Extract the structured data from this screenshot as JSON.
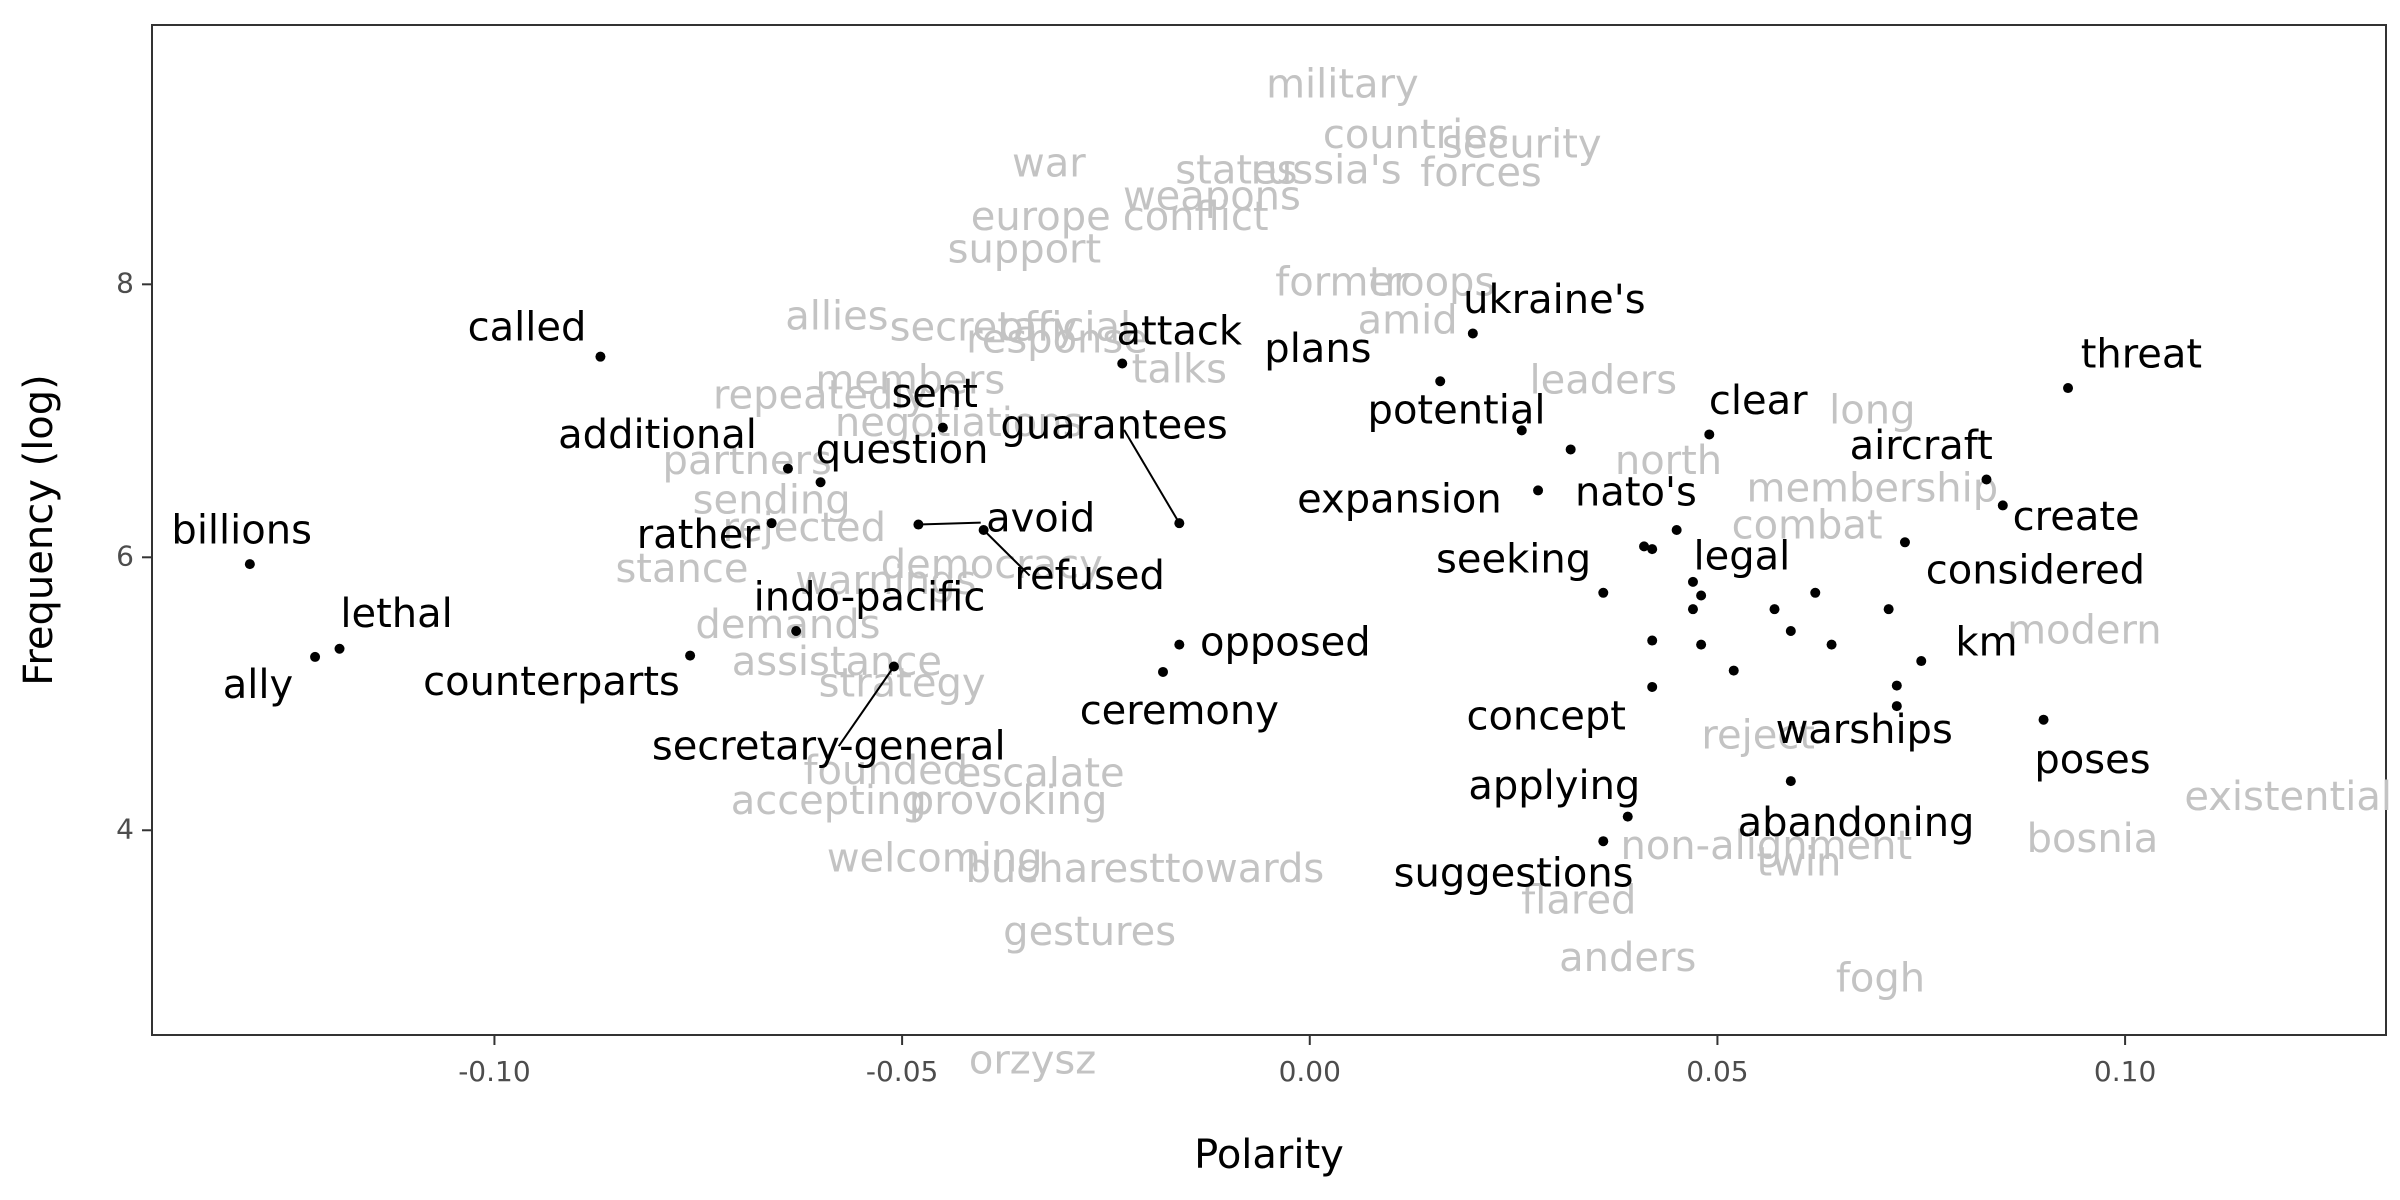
{
  "chart_data": {
    "type": "scatter",
    "xlabel": "Polarity",
    "ylabel": "Frequency (log)",
    "xlim": [
      -0.142,
      0.132
    ],
    "ylim": [
      2.5,
      9.9
    ],
    "x_ticks": [
      -0.1,
      -0.05,
      0.0,
      0.05,
      0.1
    ],
    "x_tick_labels": [
      "-0.10",
      "-0.05",
      "0.00",
      "0.05",
      "0.10"
    ],
    "y_ticks": [
      4,
      6,
      8
    ],
    "y_tick_labels": [
      "4",
      "6",
      "8"
    ],
    "grid": false,
    "colors": {
      "highlight": "#000000",
      "background_words": "#c3c3c3",
      "axis_text": "#4d4d4d"
    },
    "highlighted": [
      {
        "word": "called",
        "x": -0.087,
        "y": 7.47,
        "lx": -0.096,
        "ly": 7.67
      },
      {
        "word": "billions",
        "x": -0.13,
        "y": 5.95,
        "lx": -0.131,
        "ly": 6.18
      },
      {
        "word": "lethal",
        "x": -0.119,
        "y": 5.33,
        "lx": -0.112,
        "ly": 5.57
      },
      {
        "word": "ally",
        "x": -0.122,
        "y": 5.27,
        "lx": -0.129,
        "ly": 5.05
      },
      {
        "word": "additional",
        "x": -0.064,
        "y": 6.65,
        "lx": -0.08,
        "ly": 6.88
      },
      {
        "word": "sent",
        "x": -0.045,
        "y": 6.95,
        "lx": -0.046,
        "ly": 7.18
      },
      {
        "word": "question",
        "x": -0.06,
        "y": 6.55,
        "lx": -0.05,
        "ly": 6.77
      },
      {
        "word": "rather",
        "x": -0.066,
        "y": 6.25,
        "lx": -0.075,
        "ly": 6.15
      },
      {
        "word": "guarantees",
        "x": -0.016,
        "y": 6.25,
        "lx": -0.024,
        "ly": 6.95,
        "leader": true
      },
      {
        "word": "avoid",
        "x": -0.048,
        "y": 6.24,
        "lx": -0.033,
        "ly": 6.27,
        "leader": true
      },
      {
        "word": "refused",
        "x": -0.04,
        "y": 6.2,
        "lx": -0.027,
        "ly": 5.85,
        "leader": true
      },
      {
        "word": "attack",
        "x": -0.023,
        "y": 7.42,
        "lx": -0.016,
        "ly": 7.64
      },
      {
        "word": "indo-pacific",
        "x": -0.063,
        "y": 5.46,
        "lx": -0.054,
        "ly": 5.69
      },
      {
        "word": "counterparts",
        "x": -0.076,
        "y": 5.28,
        "lx": -0.093,
        "ly": 5.07
      },
      {
        "word": "secretary-general",
        "x": -0.051,
        "y": 5.2,
        "lx": -0.059,
        "ly": 4.6,
        "leader": true
      },
      {
        "word": "opposed",
        "x": -0.016,
        "y": 5.36,
        "lx": -0.003,
        "ly": 5.36
      },
      {
        "word": "ceremony",
        "x": -0.018,
        "y": 5.16,
        "lx": -0.016,
        "ly": 4.86
      },
      {
        "word": "plans",
        "x": 0.016,
        "y": 7.29,
        "lx": 0.001,
        "ly": 7.51
      },
      {
        "word": "ukraine's",
        "x": 0.02,
        "y": 7.64,
        "lx": 0.03,
        "ly": 7.87
      },
      {
        "word": "potential",
        "x": 0.026,
        "y": 6.93,
        "lx": 0.018,
        "ly": 7.06
      },
      {
        "word": "clear",
        "x": 0.049,
        "y": 6.9,
        "lx": 0.055,
        "ly": 7.13
      },
      {
        "word": "expansion",
        "x": 0.028,
        "y": 6.49,
        "lx": 0.011,
        "ly": 6.41
      },
      {
        "word": "nato's",
        "x": 0.032,
        "y": 6.79,
        "lx": 0.04,
        "ly": 6.46
      },
      {
        "word": "seeking",
        "x": 0.036,
        "y": 5.74,
        "lx": 0.025,
        "ly": 5.97
      },
      {
        "word": "legal",
        "x": 0.045,
        "y": 6.2,
        "lx": 0.053,
        "ly": 5.99
      },
      {
        "word": "threat",
        "x": 0.093,
        "y": 7.24,
        "lx": 0.102,
        "ly": 7.47
      },
      {
        "word": "aircraft",
        "x": 0.083,
        "y": 6.57,
        "lx": 0.075,
        "ly": 6.8
      },
      {
        "word": "create",
        "x": 0.085,
        "y": 6.38,
        "lx": 0.094,
        "ly": 6.28
      },
      {
        "word": "considered",
        "x": 0.073,
        "y": 6.11,
        "lx": 0.089,
        "ly": 5.89
      },
      {
        "word": "km",
        "x": 0.075,
        "y": 5.24,
        "lx": 0.083,
        "ly": 5.36
      },
      {
        "word": "warships",
        "x": 0.072,
        "y": 4.91,
        "lx": 0.068,
        "ly": 4.72
      },
      {
        "word": "poses",
        "x": 0.09,
        "y": 4.81,
        "lx": 0.096,
        "ly": 4.5
      },
      {
        "word": "concept",
        "x": 0.042,
        "y": 5.05,
        "lx": 0.029,
        "ly": 4.82
      },
      {
        "word": "applying",
        "x": 0.039,
        "y": 4.1,
        "lx": 0.03,
        "ly": 4.31
      },
      {
        "word": "abandoning",
        "x": 0.059,
        "y": 4.36,
        "lx": 0.067,
        "ly": 4.04
      },
      {
        "word": "suggestions",
        "x": 0.036,
        "y": 3.92,
        "lx": 0.025,
        "ly": 3.67
      }
    ],
    "extra_points": [
      [
        0.041,
        6.08
      ],
      [
        0.042,
        6.06
      ],
      [
        0.047,
        5.82
      ],
      [
        0.048,
        5.72
      ],
      [
        0.047,
        5.62
      ],
      [
        0.042,
        5.39
      ],
      [
        0.048,
        5.36
      ],
      [
        0.052,
        5.17
      ],
      [
        0.057,
        5.62
      ],
      [
        0.059,
        5.46
      ],
      [
        0.062,
        5.74
      ],
      [
        0.064,
        5.36
      ],
      [
        0.071,
        5.62
      ],
      [
        0.072,
        5.06
      ]
    ],
    "background_words": [
      {
        "word": "military",
        "x": 0.004,
        "y": 9.45
      },
      {
        "word": "countries",
        "x": 0.013,
        "y": 9.08
      },
      {
        "word": "security",
        "x": 0.026,
        "y": 9.01
      },
      {
        "word": "war",
        "x": -0.032,
        "y": 8.87
      },
      {
        "word": "states",
        "x": -0.009,
        "y": 8.82
      },
      {
        "word": "russia's",
        "x": 0.002,
        "y": 8.82
      },
      {
        "word": "forces",
        "x": 0.021,
        "y": 8.8
      },
      {
        "word": "weapons",
        "x": -0.012,
        "y": 8.63
      },
      {
        "word": "europe",
        "x": -0.033,
        "y": 8.48
      },
      {
        "word": "conflict",
        "x": -0.014,
        "y": 8.48
      },
      {
        "word": "support",
        "x": -0.035,
        "y": 8.24
      },
      {
        "word": "former",
        "x": 0.004,
        "y": 8.0
      },
      {
        "word": "troops",
        "x": 0.015,
        "y": 8.0
      },
      {
        "word": "allies",
        "x": -0.058,
        "y": 7.75
      },
      {
        "word": "secretary",
        "x": -0.04,
        "y": 7.67
      },
      {
        "word": "official",
        "x": -0.03,
        "y": 7.67
      },
      {
        "word": "amid",
        "x": 0.012,
        "y": 7.72
      },
      {
        "word": "response",
        "x": -0.031,
        "y": 7.58
      },
      {
        "word": "members",
        "x": -0.049,
        "y": 7.28
      },
      {
        "word": "repeatedly",
        "x": -0.06,
        "y": 7.17
      },
      {
        "word": "talks",
        "x": -0.016,
        "y": 7.36
      },
      {
        "word": "leaders",
        "x": 0.036,
        "y": 7.28
      },
      {
        "word": "long",
        "x": 0.069,
        "y": 7.06
      },
      {
        "word": "negotiations",
        "x": -0.043,
        "y": 6.97
      },
      {
        "word": "partners",
        "x": -0.069,
        "y": 6.69
      },
      {
        "word": "north",
        "x": 0.044,
        "y": 6.69
      },
      {
        "word": "membership",
        "x": 0.069,
        "y": 6.49
      },
      {
        "word": "sending",
        "x": -0.066,
        "y": 6.4
      },
      {
        "word": "combat",
        "x": 0.061,
        "y": 6.22
      },
      {
        "word": "rejected",
        "x": -0.062,
        "y": 6.2
      },
      {
        "word": "stance",
        "x": -0.077,
        "y": 5.9
      },
      {
        "word": "democracy",
        "x": -0.039,
        "y": 5.93
      },
      {
        "word": "warnings",
        "x": -0.052,
        "y": 5.81
      },
      {
        "word": "modern",
        "x": 0.095,
        "y": 5.45
      },
      {
        "word": "demands",
        "x": -0.064,
        "y": 5.49
      },
      {
        "word": "assistance",
        "x": -0.058,
        "y": 5.22
      },
      {
        "word": "strategy",
        "x": -0.05,
        "y": 5.06
      },
      {
        "word": "reject",
        "x": 0.055,
        "y": 4.68
      },
      {
        "word": "founded",
        "x": -0.052,
        "y": 4.42
      },
      {
        "word": "escalate",
        "x": -0.033,
        "y": 4.4
      },
      {
        "word": "accepting",
        "x": -0.059,
        "y": 4.2
      },
      {
        "word": "provoking",
        "x": -0.037,
        "y": 4.2
      },
      {
        "word": "existential",
        "x": 0.12,
        "y": 4.23
      },
      {
        "word": "bosnia",
        "x": 0.096,
        "y": 3.92
      },
      {
        "word": "welcoming",
        "x": -0.046,
        "y": 3.78
      },
      {
        "word": "bucharest",
        "x": -0.03,
        "y": 3.7
      },
      {
        "word": "towards",
        "x": -0.008,
        "y": 3.7
      },
      {
        "word": "non-alignment",
        "x": 0.056,
        "y": 3.87
      },
      {
        "word": "twin",
        "x": 0.06,
        "y": 3.75
      },
      {
        "word": "flared",
        "x": 0.033,
        "y": 3.47
      },
      {
        "word": "gestures",
        "x": -0.027,
        "y": 3.24
      },
      {
        "word": "anders",
        "x": 0.039,
        "y": 3.05
      },
      {
        "word": "fogh",
        "x": 0.07,
        "y": 2.9
      },
      {
        "word": "orzysz",
        "x": -0.034,
        "y": 2.3
      }
    ]
  }
}
